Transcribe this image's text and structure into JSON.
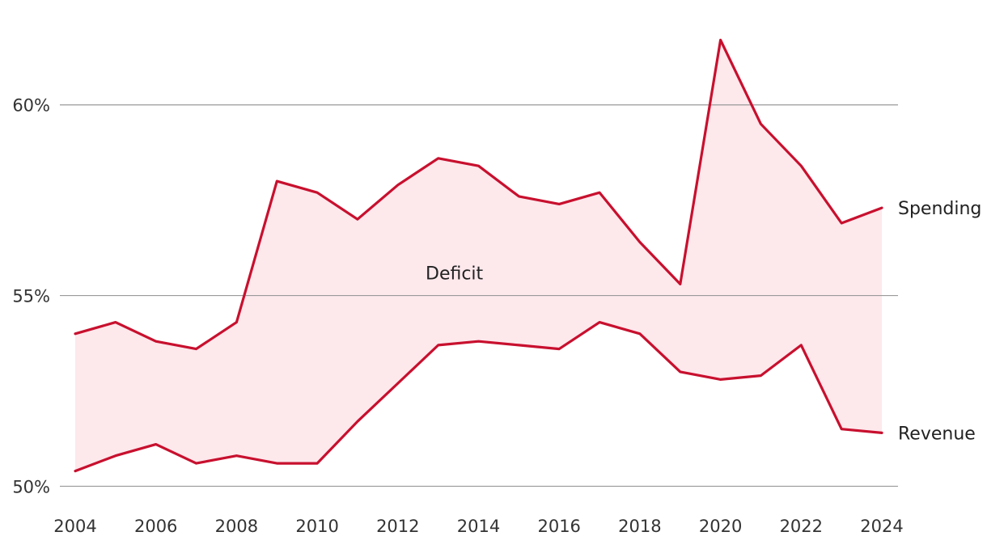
{
  "chart_data": {
    "type": "area",
    "title": "",
    "xlabel": "",
    "ylabel": "",
    "x": [
      2004,
      2005,
      2006,
      2007,
      2008,
      2009,
      2010,
      2011,
      2012,
      2013,
      2014,
      2015,
      2016,
      2017,
      2018,
      2019,
      2020,
      2021,
      2022,
      2023,
      2024
    ],
    "series": [
      {
        "name": "Spending",
        "values": [
          54.0,
          54.3,
          53.8,
          53.6,
          54.3,
          58.0,
          57.7,
          57.0,
          57.9,
          58.6,
          58.4,
          57.6,
          57.4,
          57.7,
          56.4,
          55.3,
          61.7,
          59.5,
          58.4,
          56.9,
          57.3
        ]
      },
      {
        "name": "Revenue",
        "values": [
          50.4,
          50.8,
          51.1,
          50.6,
          50.8,
          50.6,
          50.6,
          51.7,
          52.7,
          53.7,
          53.8,
          53.7,
          53.6,
          54.3,
          54.0,
          53.0,
          52.8,
          52.9,
          53.7,
          51.5,
          51.4
        ]
      }
    ],
    "band_label": "Deficit",
    "ylim": [
      48.25,
      62.75
    ],
    "y_ticks": [
      50,
      55,
      60
    ],
    "y_tick_labels": [
      "50%",
      "55%",
      "60%"
    ],
    "x_ticks": [
      2004,
      2006,
      2008,
      2010,
      2012,
      2014,
      2016,
      2018,
      2020,
      2022,
      2024
    ],
    "x_tick_labels": [
      "2004",
      "2006",
      "2008",
      "2010",
      "2012",
      "2014",
      "2016",
      "2018",
      "2020",
      "2022",
      "2024"
    ],
    "grid": true,
    "legend": "direct labels at line ends",
    "colors": {
      "line": "#c8102e",
      "band": "#fde8ec",
      "grid": "#9a9a9a"
    }
  }
}
